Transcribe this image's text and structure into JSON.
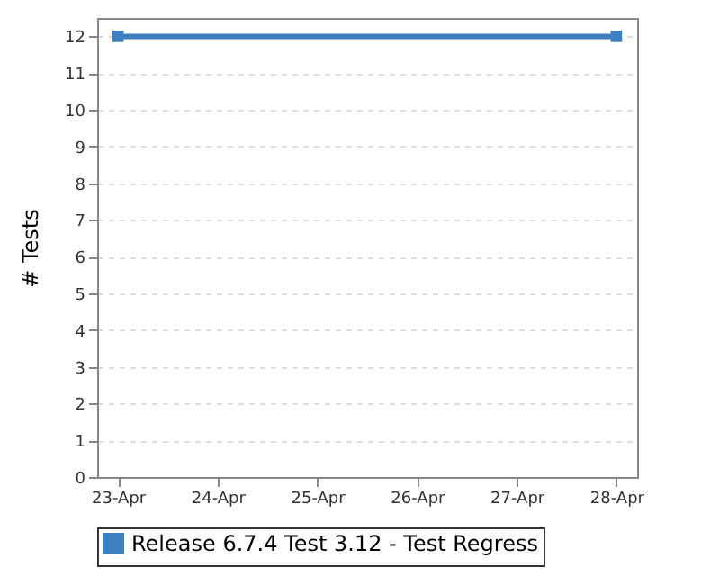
{
  "chart_data": {
    "type": "line",
    "ylabel": "# Tests",
    "x": [
      "--04-23",
      "--04-28"
    ],
    "series": [
      {
        "name": "Release 6.7.4 Test 3.12 - Test Regress",
        "color": "#3d7fbf",
        "values": [
          12,
          12
        ]
      }
    ],
    "xlim": [
      "--04-22T19:00",
      "--04-28T05:00"
    ],
    "xticks": [
      {
        "value": "--04-23",
        "label": "23-Apr"
      },
      {
        "value": "--04-24",
        "label": "24-Apr"
      },
      {
        "value": "--04-25",
        "label": "25-Apr"
      },
      {
        "value": "--04-26",
        "label": "26-Apr"
      },
      {
        "value": "--04-27",
        "label": "27-Apr"
      },
      {
        "value": "--04-28",
        "label": "28-Apr"
      }
    ],
    "ylim": [
      0,
      12.5
    ],
    "yticks": [
      0,
      1,
      2,
      3,
      4,
      5,
      6,
      7,
      8,
      9,
      10,
      11,
      12
    ],
    "grid": "y",
    "legend": "bottom",
    "marker": "square",
    "line_style": "solid"
  }
}
